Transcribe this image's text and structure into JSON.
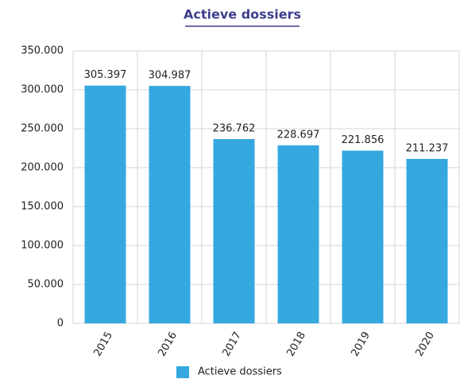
{
  "chart_data": {
    "type": "bar",
    "title": "Actieve dossiers",
    "categories": [
      "2015",
      "2016",
      "2017",
      "2018",
      "2019",
      "2020"
    ],
    "series": [
      {
        "name": "Actieve dossiers",
        "color": "#35a8e0",
        "values": [
          305397,
          304987,
          236762,
          228697,
          221856,
          211237
        ],
        "value_labels": [
          "305.397",
          "304.987",
          "236.762",
          "228.697",
          "221.856",
          "211.237"
        ]
      }
    ],
    "ylim": [
      0,
      350000
    ],
    "yticks": [
      0,
      {
        "value": 50000,
        "label": "50.000"
      },
      {
        "value": 100000,
        "label": "100.000"
      },
      {
        "value": 150000,
        "label": "150.000"
      },
      {
        "value": 200000,
        "label": "200.000"
      },
      {
        "value": 250000,
        "label": "250.000"
      },
      {
        "value": 300000,
        "label": "300.000"
      },
      {
        "value": 350000,
        "label": "350.000"
      }
    ],
    "grid": true
  }
}
